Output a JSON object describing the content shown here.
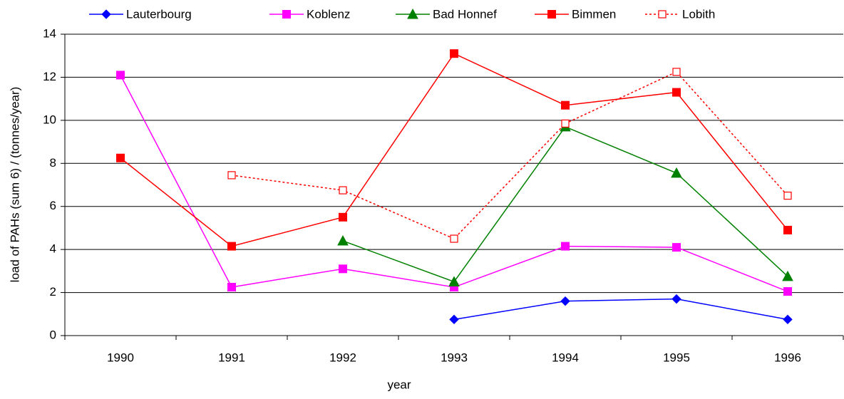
{
  "chart_data": {
    "type": "line",
    "x_label": "year",
    "y_label": "load of PAHs (sum 6) / (tonnes/year)",
    "categories": [
      "1990",
      "1991",
      "1992",
      "1993",
      "1994",
      "1995",
      "1996"
    ],
    "ylim": [
      0,
      14
    ],
    "yticks": [
      0,
      2,
      4,
      6,
      8,
      10,
      12,
      14
    ],
    "grid": true,
    "series": [
      {
        "name": "Lauterbourg",
        "color": "#0000ff",
        "marker": "diamond",
        "dashed": false,
        "values": [
          null,
          null,
          null,
          0.75,
          1.6,
          1.7,
          0.75
        ]
      },
      {
        "name": "Koblenz",
        "color": "#ff00ff",
        "marker": "square",
        "dashed": false,
        "values": [
          12.1,
          2.25,
          3.1,
          2.25,
          4.15,
          4.1,
          2.05
        ]
      },
      {
        "name": "Bad Honnef",
        "color": "#008000",
        "marker": "triangle",
        "dashed": false,
        "values": [
          null,
          null,
          4.4,
          2.5,
          9.7,
          7.55,
          2.75
        ]
      },
      {
        "name": "Bimmen",
        "color": "#ff0000",
        "marker": "square",
        "dashed": false,
        "values": [
          8.25,
          4.15,
          5.5,
          13.1,
          10.7,
          11.3,
          4.9
        ]
      },
      {
        "name": "Lobith",
        "color": "#ff0000",
        "marker": "open-square",
        "dashed": true,
        "values": [
          null,
          7.45,
          6.75,
          4.5,
          9.85,
          12.25,
          6.5
        ]
      }
    ]
  }
}
